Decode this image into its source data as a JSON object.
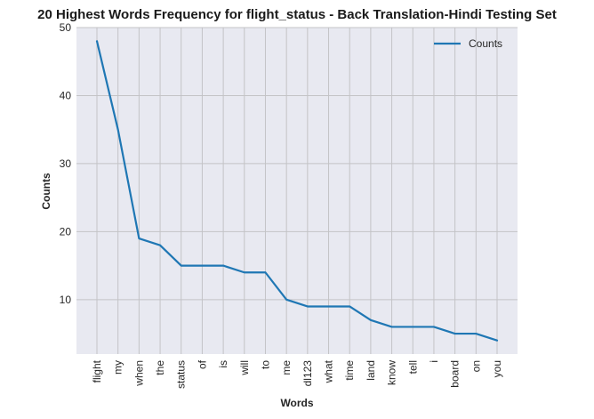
{
  "chart_data": {
    "type": "line",
    "title": "20 Highest Words Frequency for flight_status - Back Translation-Hindi Testing Set",
    "xlabel": "Words",
    "ylabel": "Counts",
    "categories": [
      "flight",
      "my",
      "when",
      "the",
      "status",
      "of",
      "is",
      "will",
      "to",
      "me",
      "dl123",
      "what",
      "time",
      "land",
      "know",
      "tell",
      "i",
      "board",
      "on",
      "you"
    ],
    "series": [
      {
        "name": "Counts",
        "values": [
          48,
          35,
          19,
          18,
          15,
          15,
          15,
          14,
          14,
          10,
          9,
          9,
          9,
          7,
          6,
          6,
          6,
          5,
          5,
          4
        ],
        "color": "#1f77b4"
      }
    ],
    "ylim": [
      2,
      50
    ],
    "yticks": [
      10,
      20,
      30,
      40,
      50
    ],
    "grid": true,
    "legend_position": "top-right",
    "colors": {
      "plot_background": "#e8e9f1",
      "grid": "#c3c3c6",
      "line": "#1f77b4"
    }
  }
}
